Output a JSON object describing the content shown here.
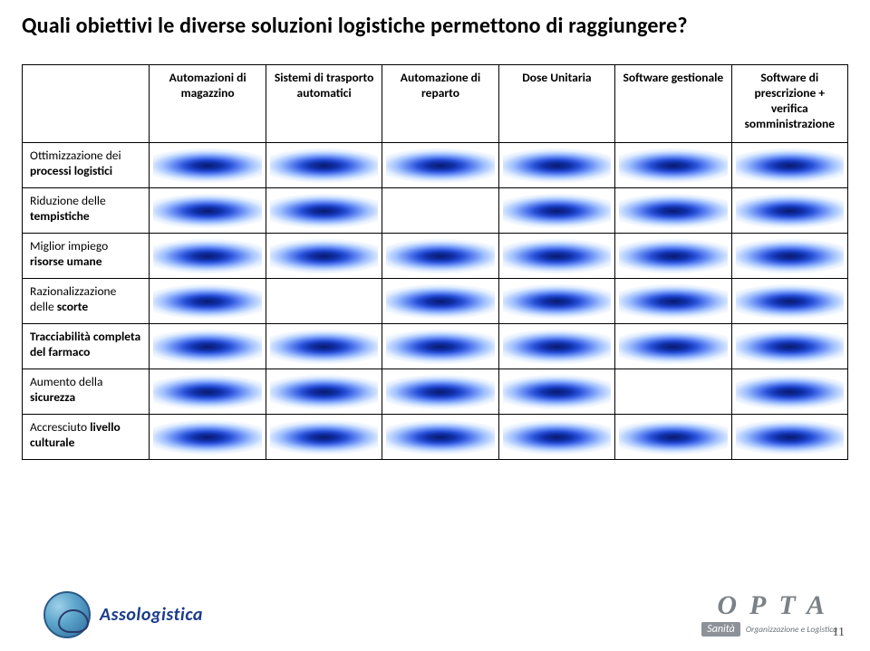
{
  "title": "Quali obiettivi le diverse soluzioni logistiche permettono di raggiungere?",
  "columns": [
    "Automazioni di magazzino",
    "Sistemi di trasporto automatici",
    "Automazione di reparto",
    "Dose Unitaria",
    "Software gestionale",
    "Software di prescrizione + verifica somministrazione"
  ],
  "rows": [
    {
      "label_plain": "Ottimizzazione dei ",
      "label_hl": "processi logistici",
      "marks": [
        true,
        true,
        true,
        true,
        true,
        true
      ]
    },
    {
      "label_plain": "Riduzione delle ",
      "label_hl": "tempistiche",
      "marks": [
        true,
        true,
        false,
        true,
        true,
        true
      ]
    },
    {
      "label_plain": "Miglior impiego ",
      "label_hl": "risorse umane",
      "marks": [
        true,
        true,
        true,
        true,
        true,
        true
      ]
    },
    {
      "label_plain": "Razionalizzazione delle ",
      "label_hl": "scorte",
      "marks": [
        true,
        false,
        true,
        true,
        true,
        true
      ]
    },
    {
      "label_plain": "",
      "label_hl": "Tracciabilità completa del farmaco",
      "marks": [
        true,
        true,
        true,
        true,
        true,
        true
      ]
    },
    {
      "label_plain": "Aumento della ",
      "label_hl": "sicurezza",
      "marks": [
        true,
        true,
        true,
        true,
        false,
        true
      ]
    },
    {
      "label_plain": "Accresciuto ",
      "label_hl": "livello culturale",
      "marks": [
        true,
        true,
        true,
        true,
        true,
        true
      ]
    }
  ],
  "logo_left": "Assologistica",
  "logo_right": {
    "main": "OPTA",
    "tag": "Sanità",
    "sub": "Organizzazione e Logistica"
  },
  "page_number": "11",
  "colors": {
    "marker_core": "#0a1a6e",
    "marker_edge": "#ffffff",
    "border": "#000000",
    "title": "#000000",
    "opta": "#7a8288",
    "sanita_bg": "#8c9298",
    "asso": "#1a3a8a"
  }
}
